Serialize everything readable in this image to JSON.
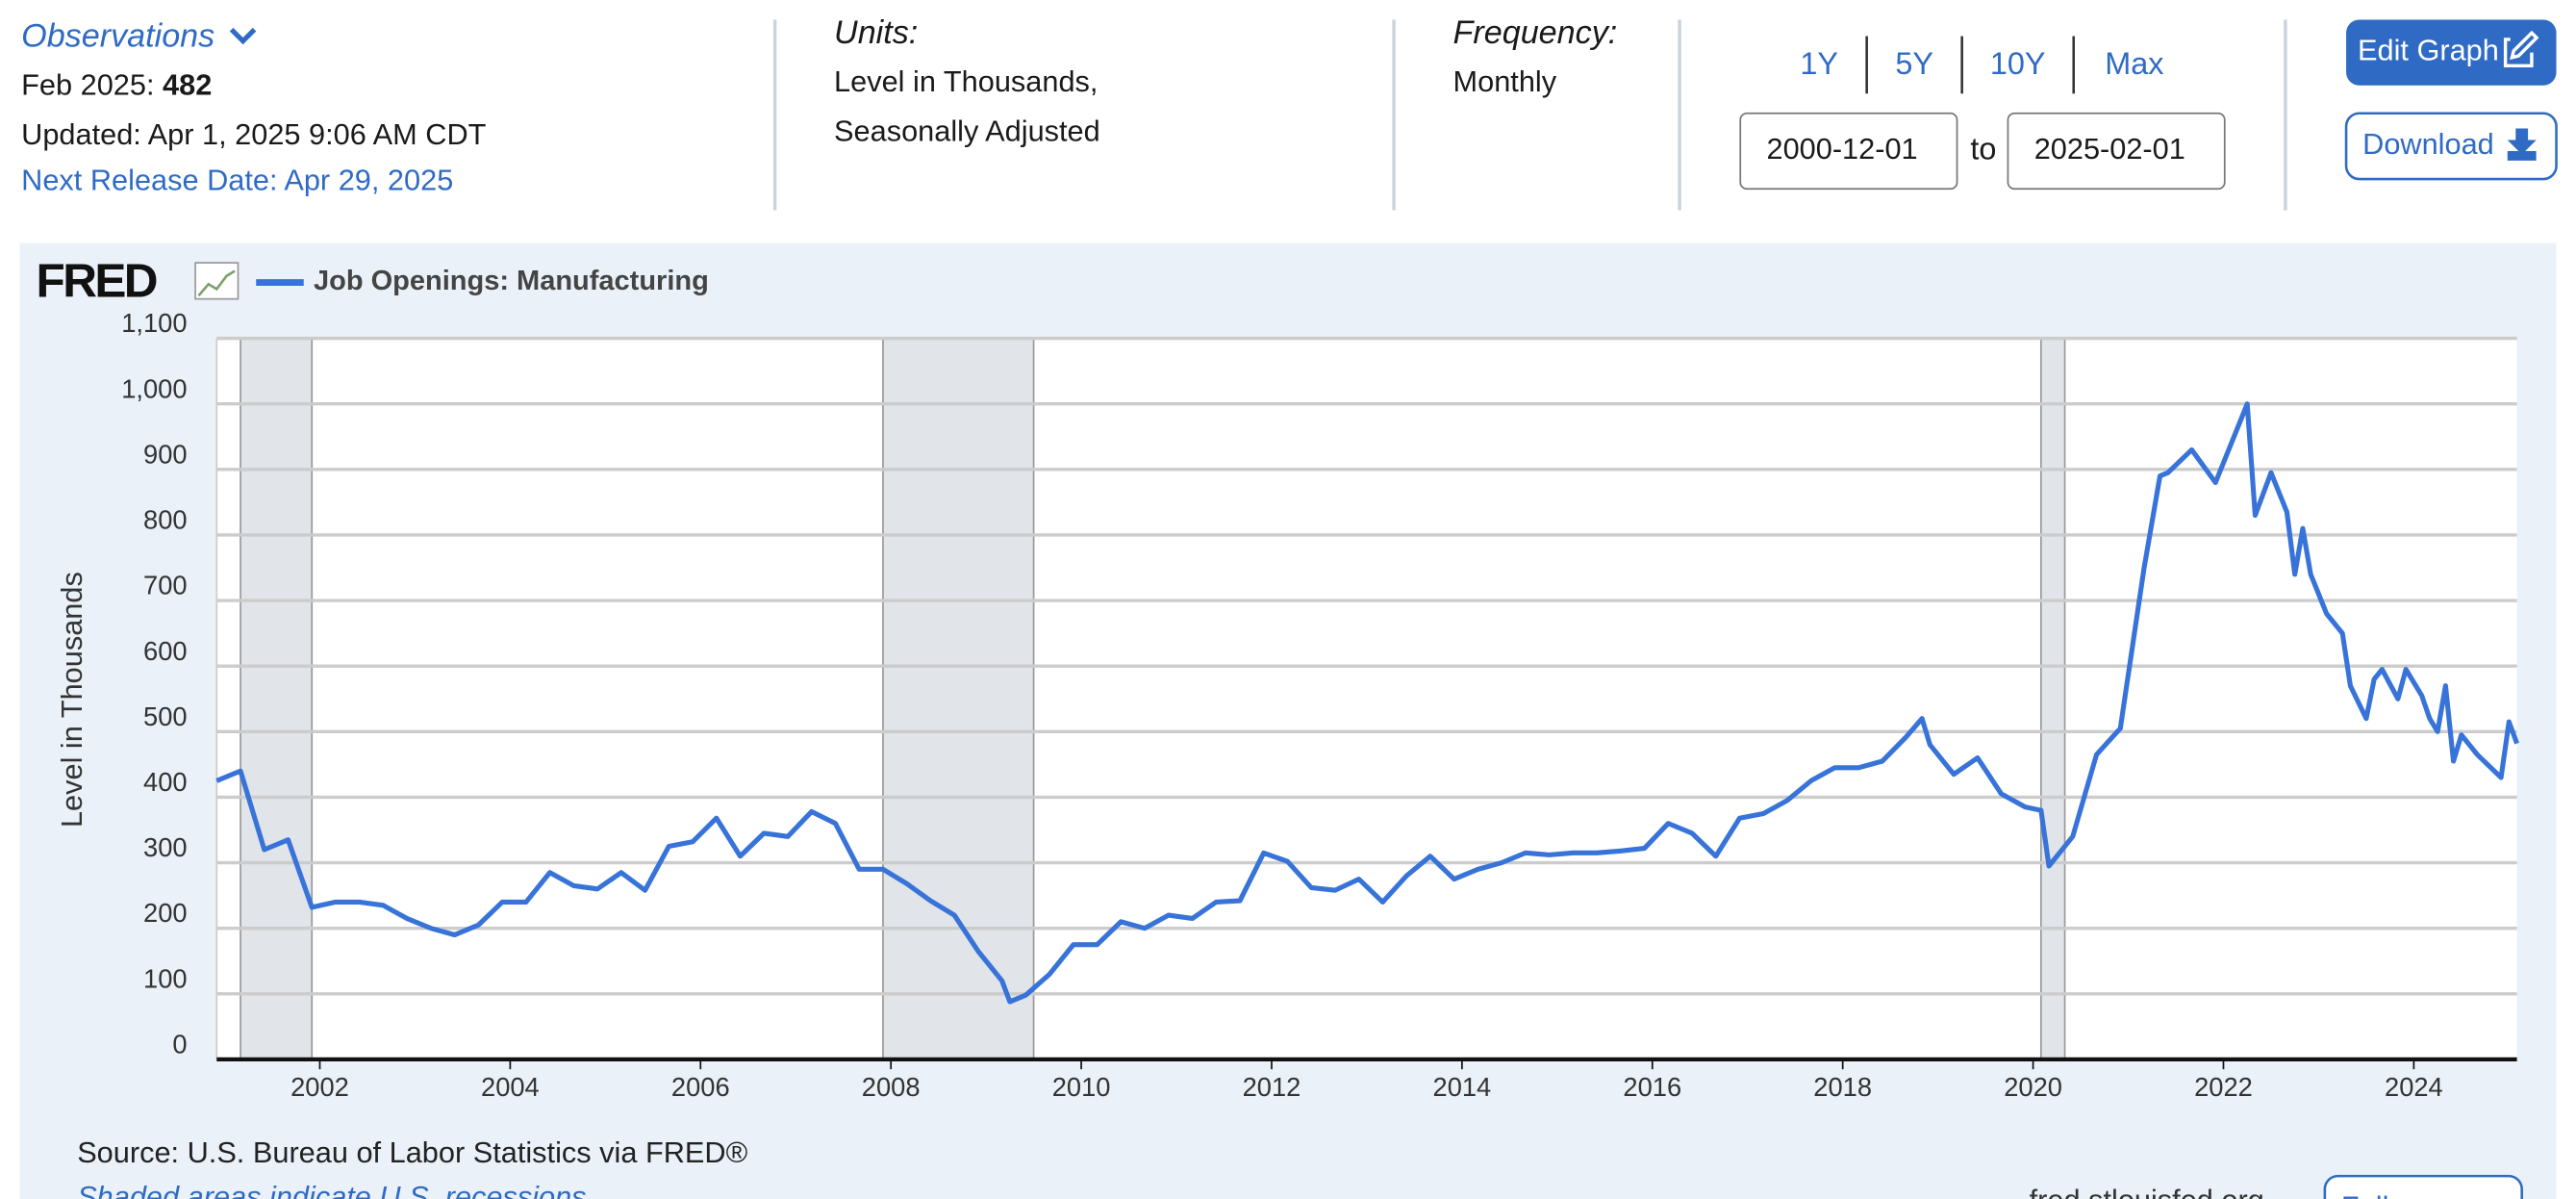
{
  "header": {
    "observations": "Observations",
    "latest_date": "Feb 2025:",
    "latest_value": 482,
    "updated": "Updated: Apr 1, 2025 9:06 AM CDT",
    "next_release": "Next Release Date: Apr 29, 2025",
    "units_label": "Units:",
    "units_line1": "Level in Thousands,",
    "units_line2": "Seasonally Adjusted",
    "frequency_label": "Frequency:",
    "frequency": "Monthly"
  },
  "controls": {
    "ranges": [
      "1Y",
      "5Y",
      "10Y",
      "Max"
    ],
    "start_date": "2000-12-01",
    "to": "to",
    "end_date": "2025-02-01",
    "edit_graph": "Edit Graph",
    "download": "Download"
  },
  "footer": {
    "source": "Source: U.S. Bureau of Labor Statistics via FRED®",
    "shaded_note": "Shaded areas indicate U.S. recessions.",
    "site": "fred.stlouisfed.org",
    "fullscreen": "Fullscreen"
  },
  "chart_data": {
    "type": "line",
    "brand": "FRED",
    "ylabel": "Level in Thousands",
    "x": [
      "2000-12",
      "2001-03",
      "2001-06",
      "2001-09",
      "2001-12",
      "2002-03",
      "2002-06",
      "2002-09",
      "2002-12",
      "2003-03",
      "2003-06",
      "2003-09",
      "2003-12",
      "2004-03",
      "2004-06",
      "2004-09",
      "2004-12",
      "2005-03",
      "2005-06",
      "2005-09",
      "2005-12",
      "2006-03",
      "2006-06",
      "2006-09",
      "2006-12",
      "2007-03",
      "2007-06",
      "2007-09",
      "2007-12",
      "2008-03",
      "2008-06",
      "2008-09",
      "2008-12",
      "2009-03",
      "2009-04",
      "2009-06",
      "2009-09",
      "2009-12",
      "2010-03",
      "2010-06",
      "2010-09",
      "2010-12",
      "2011-03",
      "2011-06",
      "2011-09",
      "2011-12",
      "2012-03",
      "2012-06",
      "2012-09",
      "2012-12",
      "2013-03",
      "2013-06",
      "2013-09",
      "2013-12",
      "2014-03",
      "2014-06",
      "2014-09",
      "2014-12",
      "2015-03",
      "2015-06",
      "2015-09",
      "2015-12",
      "2016-03",
      "2016-06",
      "2016-09",
      "2016-12",
      "2017-03",
      "2017-06",
      "2017-09",
      "2017-12",
      "2018-03",
      "2018-06",
      "2018-09",
      "2018-11",
      "2018-12",
      "2019-03",
      "2019-06",
      "2019-09",
      "2019-12",
      "2020-02",
      "2020-03",
      "2020-06",
      "2020-09",
      "2020-12",
      "2021-03",
      "2021-05",
      "2021-06",
      "2021-09",
      "2021-12",
      "2022-04",
      "2022-05",
      "2022-07",
      "2022-09",
      "2022-10",
      "2022-11",
      "2022-12",
      "2023-02",
      "2023-04",
      "2023-05",
      "2023-07",
      "2023-08",
      "2023-09",
      "2023-11",
      "2023-12",
      "2024-02",
      "2024-03",
      "2024-04",
      "2024-05",
      "2024-06",
      "2024-07",
      "2024-09",
      "2024-12",
      "2025-01",
      "2025-02"
    ],
    "series": [
      {
        "name": "Job Openings: Manufacturing",
        "color": "#3773d9",
        "values": [
          425,
          440,
          320,
          335,
          232,
          240,
          240,
          235,
          215,
          200,
          190,
          205,
          240,
          240,
          285,
          265,
          260,
          285,
          258,
          325,
          332,
          368,
          310,
          345,
          340,
          378,
          360,
          290,
          290,
          268,
          242,
          220,
          165,
          120,
          88,
          98,
          130,
          175,
          175,
          210,
          200,
          220,
          215,
          240,
          242,
          315,
          302,
          262,
          258,
          275,
          240,
          280,
          310,
          275,
          290,
          300,
          315,
          312,
          315,
          315,
          318,
          322,
          360,
          345,
          310,
          368,
          375,
          395,
          425,
          445,
          445,
          455,
          492,
          520,
          480,
          435,
          460,
          405,
          385,
          380,
          295,
          340,
          465,
          505,
          750,
          890,
          895,
          930,
          880,
          1000,
          830,
          895,
          835,
          740,
          810,
          740,
          680,
          650,
          570,
          520,
          580,
          595,
          550,
          595,
          555,
          520,
          500,
          570,
          455,
          495,
          465,
          430,
          515,
          482
        ]
      }
    ],
    "xlim": [
      "2000-12",
      "2025-02"
    ],
    "xticks": [
      2002,
      2004,
      2006,
      2008,
      2010,
      2012,
      2014,
      2016,
      2018,
      2020,
      2022,
      2024
    ],
    "ylim": [
      0,
      1100
    ],
    "yticks": [
      0,
      100,
      200,
      300,
      400,
      500,
      600,
      700,
      800,
      900,
      {
        "value": 1000,
        "label": "1,000"
      },
      {
        "value": 1100,
        "label": "1,100"
      }
    ],
    "grid": true,
    "recessions": [
      [
        "2001-03",
        "2001-11"
      ],
      [
        "2007-12",
        "2009-06"
      ],
      [
        "2020-02",
        "2020-04"
      ]
    ]
  }
}
